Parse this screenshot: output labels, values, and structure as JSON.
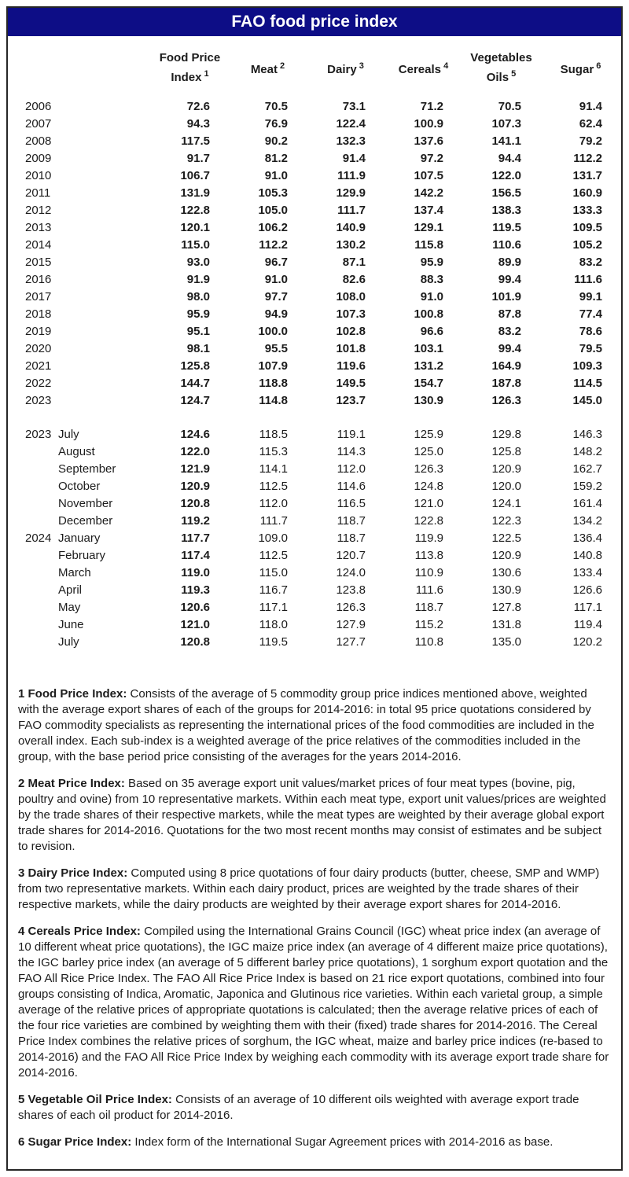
{
  "header": {
    "title": "FAO food price index"
  },
  "table": {
    "column_headers": [
      {
        "lines": [
          "Food Price",
          "Index"
        ],
        "sup": "1"
      },
      {
        "lines": [
          "Meat"
        ],
        "sup": "2"
      },
      {
        "lines": [
          "Dairy"
        ],
        "sup": "3"
      },
      {
        "lines": [
          "Cereals"
        ],
        "sup": "4"
      },
      {
        "lines": [
          "Vegetables",
          "Oils"
        ],
        "sup": "5"
      },
      {
        "lines": [
          "Sugar"
        ],
        "sup": "6"
      }
    ],
    "annual_rows": [
      {
        "year": "2006",
        "values": [
          "72.6",
          "70.5",
          "73.1",
          "71.2",
          "70.5",
          "91.4"
        ]
      },
      {
        "year": "2007",
        "values": [
          "94.3",
          "76.9",
          "122.4",
          "100.9",
          "107.3",
          "62.4"
        ]
      },
      {
        "year": "2008",
        "values": [
          "117.5",
          "90.2",
          "132.3",
          "137.6",
          "141.1",
          "79.2"
        ]
      },
      {
        "year": "2009",
        "values": [
          "91.7",
          "81.2",
          "91.4",
          "97.2",
          "94.4",
          "112.2"
        ]
      },
      {
        "year": "2010",
        "values": [
          "106.7",
          "91.0",
          "111.9",
          "107.5",
          "122.0",
          "131.7"
        ]
      },
      {
        "year": "2011",
        "values": [
          "131.9",
          "105.3",
          "129.9",
          "142.2",
          "156.5",
          "160.9"
        ]
      },
      {
        "year": "2012",
        "values": [
          "122.8",
          "105.0",
          "111.7",
          "137.4",
          "138.3",
          "133.3"
        ]
      },
      {
        "year": "2013",
        "values": [
          "120.1",
          "106.2",
          "140.9",
          "129.1",
          "119.5",
          "109.5"
        ]
      },
      {
        "year": "2014",
        "values": [
          "115.0",
          "112.2",
          "130.2",
          "115.8",
          "110.6",
          "105.2"
        ]
      },
      {
        "year": "2015",
        "values": [
          "93.0",
          "96.7",
          "87.1",
          "95.9",
          "89.9",
          "83.2"
        ]
      },
      {
        "year": "2016",
        "values": [
          "91.9",
          "91.0",
          "82.6",
          "88.3",
          "99.4",
          "111.6"
        ]
      },
      {
        "year": "2017",
        "values": [
          "98.0",
          "97.7",
          "108.0",
          "91.0",
          "101.9",
          "99.1"
        ]
      },
      {
        "year": "2018",
        "values": [
          "95.9",
          "94.9",
          "107.3",
          "100.8",
          "87.8",
          "77.4"
        ]
      },
      {
        "year": "2019",
        "values": [
          "95.1",
          "100.0",
          "102.8",
          "96.6",
          "83.2",
          "78.6"
        ]
      },
      {
        "year": "2020",
        "values": [
          "98.1",
          "95.5",
          "101.8",
          "103.1",
          "99.4",
          "79.5"
        ]
      },
      {
        "year": "2021",
        "values": [
          "125.8",
          "107.9",
          "119.6",
          "131.2",
          "164.9",
          "109.3"
        ]
      },
      {
        "year": "2022",
        "values": [
          "144.7",
          "118.8",
          "149.5",
          "154.7",
          "187.8",
          "114.5"
        ]
      },
      {
        "year": "2023",
        "values": [
          "124.7",
          "114.8",
          "123.7",
          "130.9",
          "126.3",
          "145.0"
        ]
      }
    ],
    "monthly_rows": [
      {
        "year": "2023",
        "month": "July",
        "values": [
          "124.6",
          "118.5",
          "119.1",
          "125.9",
          "129.8",
          "146.3"
        ]
      },
      {
        "year": "",
        "month": "August",
        "values": [
          "122.0",
          "115.3",
          "114.3",
          "125.0",
          "125.8",
          "148.2"
        ]
      },
      {
        "year": "",
        "month": "September",
        "values": [
          "121.9",
          "114.1",
          "112.0",
          "126.3",
          "120.9",
          "162.7"
        ]
      },
      {
        "year": "",
        "month": "October",
        "values": [
          "120.9",
          "112.5",
          "114.6",
          "124.8",
          "120.0",
          "159.2"
        ]
      },
      {
        "year": "",
        "month": "November",
        "values": [
          "120.8",
          "112.0",
          "116.5",
          "121.0",
          "124.1",
          "161.4"
        ]
      },
      {
        "year": "",
        "month": "December",
        "values": [
          "119.2",
          "111.7",
          "118.7",
          "122.8",
          "122.3",
          "134.2"
        ]
      },
      {
        "year": "2024",
        "month": "January",
        "values": [
          "117.7",
          "109.0",
          "118.7",
          "119.9",
          "122.5",
          "136.4"
        ]
      },
      {
        "year": "",
        "month": "February",
        "values": [
          "117.4",
          "112.5",
          "120.7",
          "113.8",
          "120.9",
          "140.8"
        ]
      },
      {
        "year": "",
        "month": "March",
        "values": [
          "119.0",
          "115.0",
          "124.0",
          "110.9",
          "130.6",
          "133.4"
        ]
      },
      {
        "year": "",
        "month": "April",
        "values": [
          "119.3",
          "116.7",
          "123.8",
          "111.6",
          "130.9",
          "126.6"
        ]
      },
      {
        "year": "",
        "month": "May",
        "values": [
          "120.6",
          "117.1",
          "126.3",
          "118.7",
          "127.8",
          "117.1"
        ]
      },
      {
        "year": "",
        "month": "June",
        "values": [
          "121.0",
          "118.0",
          "127.9",
          "115.2",
          "131.8",
          "119.4"
        ]
      },
      {
        "year": "",
        "month": "July",
        "values": [
          "120.8",
          "119.5",
          "127.7",
          "110.8",
          "135.0",
          "120.2"
        ]
      }
    ]
  },
  "footnotes": [
    {
      "label": "1 Food Price Index:",
      "text": "Consists of the average of 5 commodity group price indices mentioned above, weighted with the average export shares of each of the groups for 2014-2016: in total 95 price quotations considered by FAO commodity specialists as representing the international prices of the food commodities are included in the overall index. Each sub-index is a weighted average of the price relatives of the commodities included in the group, with the base period price consisting of the averages for the years 2014-2016."
    },
    {
      "label": "2 Meat Price Index:",
      "text": "Based on 35 average export unit values/market prices of four meat types (bovine, pig, poultry and ovine) from 10 representative markets. Within each meat type, export unit values/prices are weighted by the trade shares of their respective markets, while the meat types are weighted by their average global export trade shares for 2014-2016. Quotations for the two most recent months may consist of estimates and be subject to revision."
    },
    {
      "label": "3 Dairy Price Index:",
      "text": "Computed using 8 price quotations of four dairy products (butter, cheese, SMP and WMP) from two representative markets. Within each dairy product, prices are weighted by the trade shares of their respective markets, while the dairy products are weighted by their average export shares for 2014-2016."
    },
    {
      "label": "4 Cereals Price Index:",
      "text": "Compiled using the International Grains Council (IGC) wheat price index (an average of 10 different wheat price quotations), the IGC maize price index (an average of 4 different maize price quotations), the IGC barley price index (an average of 5 different barley price quotations), 1 sorghum export quotation and the FAO All Rice Price Index. The FAO All Rice Price Index is based on 21 rice export quotations, combined into four groups consisting of Indica, Aromatic, Japonica and Glutinous rice varieties. Within each varietal group, a simple average of the relative prices of appropriate quotations is calculated; then the average relative prices of each of the four rice varieties are combined by weighting them with their (fixed) trade shares for 2014-2016. The Cereal Price Index combines the relative prices of sorghum, the IGC wheat, maize and barley price indices (re-based to 2014-2016) and the FAO All Rice Price Index by weighing each commodity with its average export trade share for 2014-2016."
    },
    {
      "label": "5 Vegetable Oil Price Index:",
      "text": "Consists of an average of 10 different oils weighted with average export trade shares of each oil product for 2014-2016."
    },
    {
      "label": "6 Sugar Price Index:",
      "text": "Index form of the International Sugar Agreement prices with 2014-2016 as base."
    }
  ],
  "colors": {
    "accent_navy": "#0d0d86",
    "border": "#262626",
    "text": "#1c1c1c"
  }
}
